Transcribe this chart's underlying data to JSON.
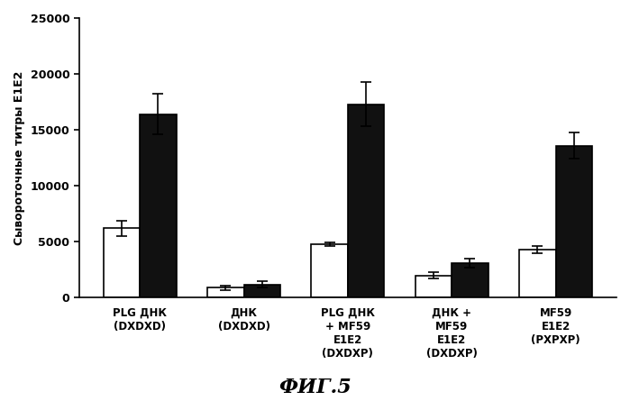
{
  "groups": [
    "PLG ДНК\n(DXDXD)",
    "ДНК\n(DXDXD)",
    "PLG ДНК\n+ MF59\nE1E2\n(DXDXP)",
    "ДНК +\nMF59\nE1E2\n(DXDXP)",
    "MF59\nE1E2\n(PXPXP)"
  ],
  "white_bars": [
    6200,
    900,
    4800,
    2000,
    4300
  ],
  "black_bars": [
    16400,
    1200,
    17300,
    3100,
    13600
  ],
  "white_errors": [
    700,
    200,
    150,
    300,
    300
  ],
  "black_errors": [
    1800,
    300,
    2000,
    400,
    1200
  ],
  "ylabel": "Сывороточные титры E1E2",
  "ylim": [
    0,
    25000
  ],
  "yticks": [
    0,
    5000,
    10000,
    15000,
    20000,
    25000
  ],
  "bar_width": 0.35,
  "white_color": "#ffffff",
  "black_color": "#111111",
  "edge_color": "#000000",
  "fig_width": 6.99,
  "fig_height": 4.45,
  "dpi": 100,
  "caption": "ФИГ.5",
  "background_color": "#ffffff"
}
